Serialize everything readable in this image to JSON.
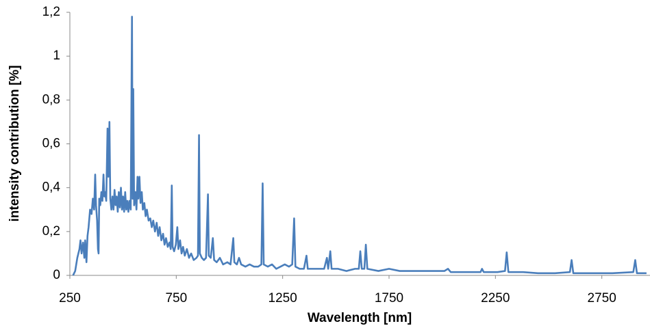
{
  "chart_data": {
    "type": "line",
    "x_label": "Wavelength [nm]",
    "y_label": "intensity contribution [%]",
    "xlim": [
      250,
      2970
    ],
    "ylim": [
      0,
      1.2
    ],
    "xticks": [
      250,
      750,
      1250,
      1750,
      2250,
      2750
    ],
    "yticks": [
      0,
      {
        "value": 0.2,
        "label": "0,2"
      },
      {
        "value": 0.4,
        "label": "0,4"
      },
      {
        "value": 0.6,
        "label": "0,6"
      },
      {
        "value": 0.8,
        "label": "0,8"
      },
      1,
      {
        "value": 1.2,
        "label": "1,2"
      }
    ],
    "grid": false,
    "series": [
      {
        "color": "#4a7ebb",
        "x": [
          265,
          275,
          285,
          295,
          300,
          305,
          312,
          318,
          322,
          328,
          333,
          338,
          345,
          352,
          358,
          364,
          369,
          373,
          378,
          382,
          385,
          388,
          393,
          398,
          403,
          408,
          412,
          416,
          421,
          427,
          431,
          436,
          440,
          445,
          450,
          455,
          460,
          465,
          470,
          475,
          480,
          485,
          490,
          495,
          500,
          505,
          510,
          515,
          520,
          525,
          530,
          536,
          542,
          545,
          548,
          552,
          558,
          563,
          568,
          572,
          577,
          582,
          588,
          593,
          600,
          606,
          612,
          620,
          628,
          635,
          642,
          650,
          658,
          665,
          672,
          680,
          688,
          695,
          702,
          710,
          718,
          724,
          729,
          733,
          740,
          748,
          755,
          760,
          768,
          775,
          782,
          790,
          800,
          810,
          820,
          832,
          845,
          852,
          857,
          861,
          870,
          880,
          890,
          899,
          903,
          912,
          922,
          928,
          940,
          955,
          970,
          990,
          1005,
          1018,
          1023,
          1035,
          1045,
          1055,
          1075,
          1095,
          1115,
          1135,
          1150,
          1156,
          1161,
          1180,
          1200,
          1220,
          1240,
          1260,
          1280,
          1295,
          1304,
          1310,
          1330,
          1350,
          1362,
          1368,
          1390,
          1420,
          1445,
          1458,
          1464,
          1474,
          1480,
          1510,
          1550,
          1590,
          1608,
          1615,
          1622,
          1634,
          1641,
          1648,
          1700,
          1750,
          1800,
          1880,
          1950,
          2010,
          2027,
          2040,
          2120,
          2180,
          2187,
          2195,
          2260,
          2295,
          2303,
          2311,
          2380,
          2450,
          2530,
          2600,
          2608,
          2616,
          2700,
          2800,
          2898,
          2907,
          2915,
          2960
        ],
        "values": [
          0,
          0.02,
          0.08,
          0.12,
          0.16,
          0.1,
          0.15,
          0.08,
          0.16,
          0.06,
          0.18,
          0.22,
          0.3,
          0.28,
          0.35,
          0.3,
          0.46,
          0.32,
          0.25,
          0.12,
          0.1,
          0.35,
          0.32,
          0.38,
          0.34,
          0.46,
          0.36,
          0.38,
          0.34,
          0.67,
          0.45,
          0.7,
          0.35,
          0.3,
          0.36,
          0.3,
          0.39,
          0.32,
          0.36,
          0.29,
          0.38,
          0.31,
          0.4,
          0.3,
          0.36,
          0.29,
          0.38,
          0.3,
          0.34,
          0.29,
          0.34,
          0.3,
          1.18,
          0.35,
          0.85,
          0.32,
          0.38,
          0.3,
          0.45,
          0.35,
          0.45,
          0.33,
          0.38,
          0.3,
          0.33,
          0.27,
          0.3,
          0.25,
          0.26,
          0.22,
          0.25,
          0.2,
          0.24,
          0.18,
          0.22,
          0.16,
          0.19,
          0.14,
          0.17,
          0.13,
          0.15,
          0.12,
          0.41,
          0.13,
          0.11,
          0.14,
          0.22,
          0.12,
          0.16,
          0.1,
          0.13,
          0.09,
          0.12,
          0.08,
          0.1,
          0.07,
          0.08,
          0.09,
          0.64,
          0.1,
          0.08,
          0.07,
          0.08,
          0.37,
          0.09,
          0.08,
          0.17,
          0.07,
          0.06,
          0.08,
          0.05,
          0.06,
          0.05,
          0.17,
          0.06,
          0.05,
          0.08,
          0.05,
          0.04,
          0.05,
          0.04,
          0.04,
          0.05,
          0.42,
          0.05,
          0.04,
          0.05,
          0.03,
          0.04,
          0.05,
          0.04,
          0.05,
          0.26,
          0.04,
          0.03,
          0.03,
          0.09,
          0.03,
          0.03,
          0.03,
          0.03,
          0.08,
          0.03,
          0.11,
          0.03,
          0.03,
          0.02,
          0.03,
          0.03,
          0.11,
          0.03,
          0.03,
          0.14,
          0.03,
          0.02,
          0.03,
          0.02,
          0.02,
          0.02,
          0.02,
          0.03,
          0.015,
          0.015,
          0.015,
          0.03,
          0.015,
          0.015,
          0.02,
          0.105,
          0.015,
          0.015,
          0.01,
          0.01,
          0.015,
          0.07,
          0.01,
          0.01,
          0.01,
          0.015,
          0.07,
          0.01,
          0.01
        ]
      }
    ]
  }
}
